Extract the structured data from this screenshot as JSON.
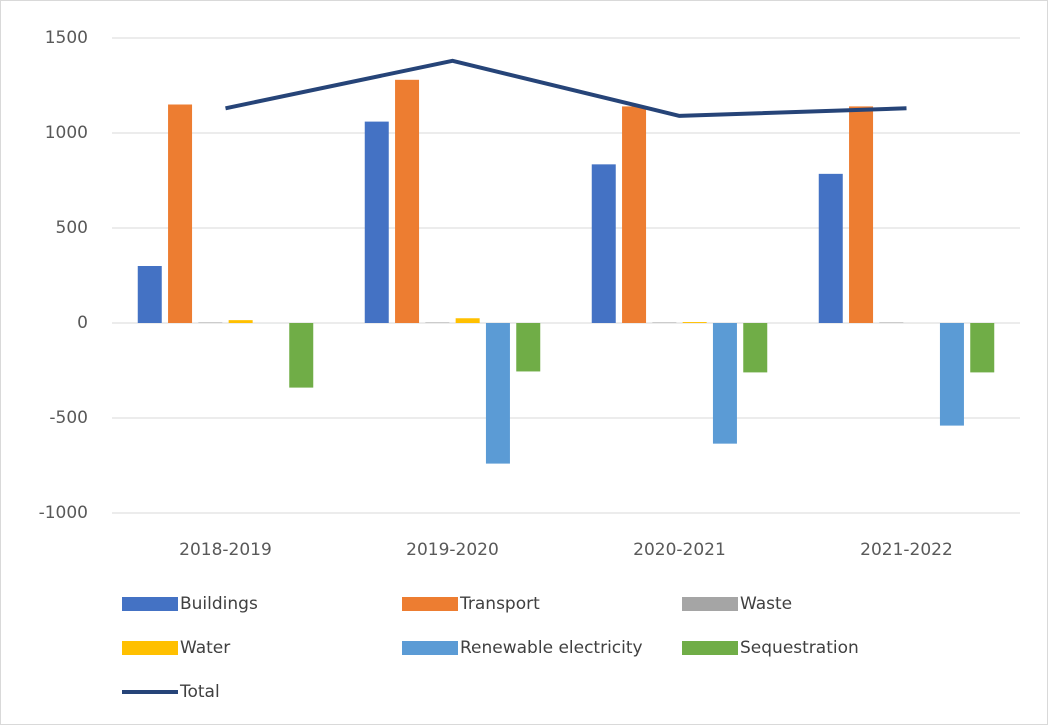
{
  "chart_data": {
    "type": "bar",
    "categories": [
      "2018-2019",
      "2019-2020",
      "2020-2021",
      "2021-2022"
    ],
    "series": [
      {
        "name": "Buildings",
        "color": "#4472c4",
        "values": [
          300,
          1060,
          835,
          785
        ]
      },
      {
        "name": "Transport",
        "color": "#ed7d31",
        "values": [
          1150,
          1280,
          1140,
          1140
        ]
      },
      {
        "name": "Waste",
        "color": "#a5a5a5",
        "values": [
          3,
          3,
          3,
          3
        ]
      },
      {
        "name": "Water",
        "color": "#ffc000",
        "values": [
          15,
          25,
          5,
          0
        ]
      },
      {
        "name": "Renewable electricity",
        "color": "#5b9bd5",
        "values": [
          0,
          -740,
          -635,
          -540
        ]
      },
      {
        "name": "Sequestration",
        "color": "#70ad47",
        "values": [
          -340,
          -255,
          -260,
          -260
        ]
      },
      {
        "name": "Total",
        "type": "line",
        "color": "#264478",
        "values": [
          1130,
          1380,
          1090,
          1130
        ]
      }
    ],
    "ylim": [
      -1000,
      1500
    ],
    "yticks": [
      -1000,
      -500,
      0,
      500,
      1000,
      1500
    ],
    "grid": true,
    "legend": "bottom"
  }
}
